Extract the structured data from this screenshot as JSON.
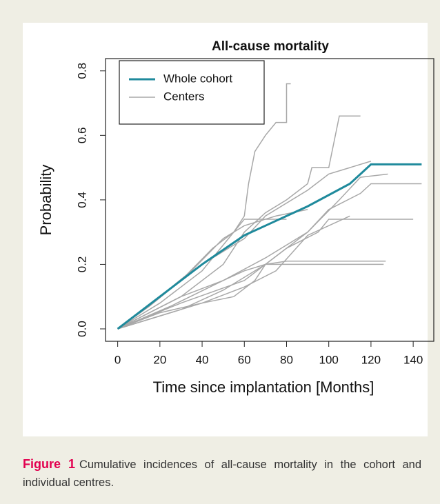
{
  "chart_data": {
    "type": "line",
    "title": "All-cause mortality",
    "xlabel": "Time since implantation [Months]",
    "ylabel": "Probability",
    "xlim": [
      -5.76,
      149.76
    ],
    "ylim": [
      -0.0385,
      0.838
    ],
    "xticks": [
      0,
      20,
      40,
      60,
      80,
      100,
      120,
      140
    ],
    "yticks": [
      {
        "value": 0,
        "label": "0.0"
      },
      {
        "value": 0.2,
        "label": "0.2"
      },
      {
        "value": 0.4,
        "label": "0.4"
      },
      {
        "value": 0.6,
        "label": "0.6"
      },
      {
        "value": 0.8,
        "label": "0.8"
      }
    ],
    "legend": "top-left",
    "series": [
      {
        "name": "Whole cohort",
        "color": "#1f8a9c",
        "x": [
          0,
          10,
          20,
          30,
          40,
          50,
          60,
          70,
          80,
          90,
          100,
          110,
          115,
          120,
          144
        ],
        "values": [
          0,
          0.05,
          0.1,
          0.15,
          0.2,
          0.245,
          0.29,
          0.32,
          0.35,
          0.38,
          0.415,
          0.45,
          0.48,
          0.51,
          0.51
        ]
      },
      {
        "name": "Centers",
        "color": "#a8a8a8",
        "lines": [
          {
            "x": [
              0,
              20,
              40,
              55,
              60,
              62,
              65,
              70,
              75,
              80,
              80,
              82
            ],
            "values": [
              0,
              0.08,
              0.18,
              0.3,
              0.35,
              0.45,
              0.55,
              0.6,
              0.64,
              0.64,
              0.76,
              0.76
            ]
          },
          {
            "x": [
              0,
              30,
              50,
              60,
              70,
              80,
              90,
              92,
              100,
              105,
              115
            ],
            "values": [
              0,
              0.1,
              0.2,
              0.3,
              0.36,
              0.4,
              0.45,
              0.5,
              0.5,
              0.66,
              0.66
            ]
          },
          {
            "x": [
              0,
              20,
              40,
              60,
              70,
              90,
              100,
              110,
              120
            ],
            "values": [
              0,
              0.1,
              0.2,
              0.28,
              0.35,
              0.43,
              0.48,
              0.5,
              0.52
            ]
          },
          {
            "x": [
              0,
              25,
              50,
              70,
              90,
              105,
              115,
              128
            ],
            "values": [
              0,
              0.07,
              0.15,
              0.22,
              0.3,
              0.4,
              0.47,
              0.48
            ]
          },
          {
            "x": [
              0,
              30,
              50,
              70,
              90,
              100,
              115,
              120,
              144
            ],
            "values": [
              0,
              0.06,
              0.12,
              0.2,
              0.3,
              0.37,
              0.42,
              0.45,
              0.45
            ]
          },
          {
            "x": [
              0,
              30,
              60,
              70,
              80,
              95,
              100,
              140
            ],
            "values": [
              0,
              0.08,
              0.15,
              0.2,
              0.25,
              0.3,
              0.34,
              0.34
            ]
          },
          {
            "x": [
              0,
              20,
              40,
              55,
              65,
              70,
              80,
              127
            ],
            "values": [
              0,
              0.05,
              0.08,
              0.1,
              0.15,
              0.2,
              0.21,
              0.21
            ]
          },
          {
            "x": [
              0,
              30,
              50,
              60,
              70,
              126
            ],
            "values": [
              0,
              0.1,
              0.15,
              0.18,
              0.2,
              0.2
            ]
          },
          {
            "x": [
              0,
              15,
              30,
              45,
              55,
              60,
              80
            ],
            "values": [
              0,
              0.07,
              0.15,
              0.25,
              0.3,
              0.34,
              0.34
            ]
          },
          {
            "x": [
              0,
              20,
              35,
              50,
              60,
              75,
              90
            ],
            "values": [
              0,
              0.1,
              0.18,
              0.28,
              0.32,
              0.35,
              0.37
            ]
          },
          {
            "x": [
              0,
              40,
              60,
              75,
              90,
              110
            ],
            "values": [
              0,
              0.08,
              0.13,
              0.18,
              0.29,
              0.35
            ]
          }
        ]
      }
    ]
  },
  "caption": {
    "label": "Figure 1",
    "text": "Cumulative incidences of all-cause mortality in the cohort and individual centres."
  }
}
